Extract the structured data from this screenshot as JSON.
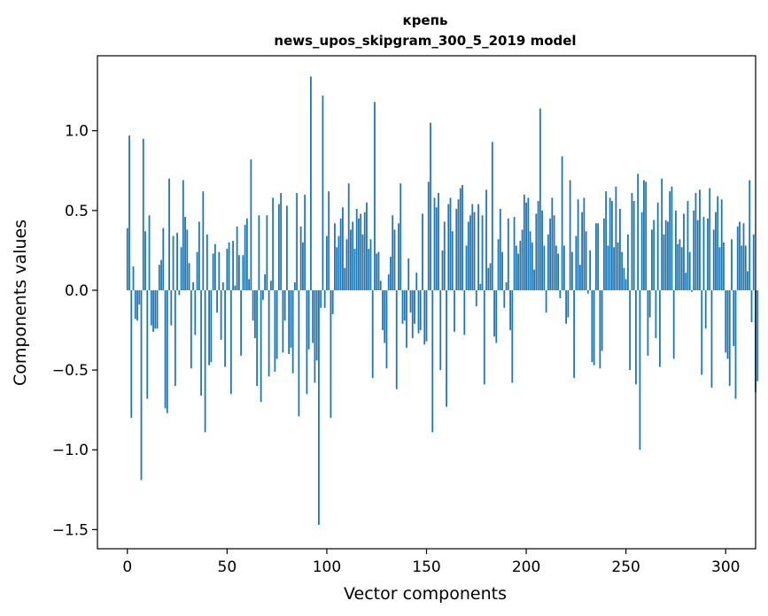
{
  "chart_data": {
    "type": "bar",
    "title_line1": "крепь",
    "title_line2": "news_upos_skipgram_300_5_2019 model",
    "xlabel": "Vector components",
    "ylabel": "Components values",
    "xlim": [
      -15,
      315
    ],
    "ylim": [
      -1.62,
      1.47
    ],
    "xticks": [
      0,
      50,
      100,
      150,
      200,
      250,
      300
    ],
    "xtick_labels": [
      "0",
      "50",
      "100",
      "150",
      "200",
      "250",
      "300"
    ],
    "yticks": [
      -1.5,
      -1.0,
      -0.5,
      0.0,
      0.5,
      1.0
    ],
    "ytick_labels": [
      "−1.5",
      "−1.0",
      "−0.5",
      "0.0",
      "0.5",
      "1.0"
    ],
    "bar_color": "#1f77b4",
    "values": [
      0.39,
      0.97,
      -0.8,
      0.15,
      -0.18,
      -0.19,
      -0.09,
      -1.19,
      0.95,
      0.37,
      -0.68,
      0.47,
      -0.22,
      -0.26,
      -0.24,
      -0.24,
      0.16,
      0.19,
      0.39,
      -0.74,
      -0.77,
      0.7,
      -0.22,
      0.34,
      -0.6,
      0.36,
      -0.03,
      0.27,
      0.69,
      0.46,
      0.38,
      0.17,
      -0.49,
      0.05,
      -0.28,
      0.24,
      0.43,
      -0.66,
      0.62,
      -0.89,
      0.35,
      -0.47,
      -0.45,
      0.23,
      0.29,
      -0.14,
      0.24,
      -0.31,
      0.05,
      -0.48,
      0.26,
      0.3,
      -0.65,
      0.31,
      0.03,
      0.4,
      0.22,
      -0.41,
      0.22,
      0.41,
      0.45,
      0.07,
      0.82,
      -0.19,
      -0.3,
      -0.6,
      0.47,
      -0.7,
      -0.06,
      0.1,
      0.47,
      -0.54,
      0.06,
      0.58,
      -0.51,
      -0.43,
      0.54,
      0.61,
      -0.39,
      -0.19,
      0.53,
      -0.4,
      -0.36,
      -0.52,
      0.05,
      0.61,
      -0.79,
      0.4,
      0.3,
      0.6,
      -0.65,
      -0.37,
      1.34,
      -0.33,
      -0.58,
      -0.44,
      -1.47,
      -0.11,
      1.22,
      -0.11,
      0.34,
      0.62,
      -0.8,
      -0.15,
      0.42,
      0.27,
      0.34,
      0.45,
      0.52,
      0.14,
      0.32,
      0.67,
      0.38,
      0.43,
      0.26,
      0.51,
      0.45,
      0.48,
      0.35,
      0.49,
      0.55,
      0.26,
      0.32,
      -0.55,
      1.18,
      0.23,
      0.24,
      0.06,
      -0.25,
      -0.33,
      -0.49,
      0.1,
      0.21,
      0.47,
      0.38,
      -0.62,
      0.42,
      0.67,
      -0.21,
      -0.19,
      -0.36,
      0.2,
      -0.14,
      -0.3,
      -0.21,
      0.11,
      -0.27,
      -0.25,
      0.48,
      -0.34,
      -0.32,
      0.68,
      1.05,
      -0.89,
      0.58,
      0.52,
      0.61,
      -0.5,
      0.25,
      0.43,
      -0.73,
      0.54,
      0.58,
      0.37,
      -0.26,
      0.51,
      0.57,
      0.64,
      0.66,
      -0.28,
      0.28,
      0.43,
      0.47,
      0.54,
      0.49,
      -0.1,
      0.54,
      0.04,
      0.47,
      -0.59,
      0.63,
      0.14,
      0.17,
      0.93,
      -0.29,
      -0.33,
      0.32,
      0.51,
      0.24,
      -0.11,
      0.05,
      0.45,
      -0.25,
      -0.58,
      0.46,
      0.28,
      0.23,
      0.31,
      0.38,
      0.6,
      0.55,
      0.58,
      0.37,
      0.3,
      0.13,
      0.48,
      0.56,
      1.14,
      0.5,
      0.28,
      -0.14,
      0.35,
      0.45,
      0.58,
      0.47,
      0.28,
      0.23,
      -0.05,
      0.84,
      0.28,
      -0.21,
      -0.17,
      0.69,
      0.24,
      -0.55,
      0.34,
      0.57,
      0.16,
      0.49,
      0.58,
      0.37,
      -0.02,
      0.25,
      -0.45,
      -0.47,
      0.42,
      0.42,
      -0.49,
      -0.38,
      0.45,
      0.62,
      0.28,
      0.58,
      0.56,
      0.27,
      0.65,
      0.3,
      0.51,
      0.24,
      0.14,
      0.07,
      0.35,
      -0.5,
      0.61,
      0.56,
      -0.59,
      0.73,
      -1.0,
      0.49,
      0.69,
      0.68,
      -0.41,
      -0.17,
      0.38,
      0.44,
      -0.3,
      0.55,
      -0.48,
      0.7,
      0.35,
      0.44,
      0.43,
      0.62,
      0.65,
      -0.43,
      0.5,
      0.29,
      0.32,
      0.27,
      0.48,
      0.11,
      0.56,
      0.24,
      -0.01,
      0.5,
      0.61,
      0.44,
      0.63,
      -0.53,
      0.46,
      -0.24,
      0.45,
      0.64,
      -0.61,
      0.38,
      0.49,
      0.59,
      0.27,
      0.57,
      0.3,
      -0.39,
      -0.43,
      -0.6,
      0.32,
      -0.35,
      -0.68,
      0.4,
      0.43,
      0.28,
      0.42,
      0.28,
      0.12,
      0.69,
      -0.2,
      0.35,
      -0.64,
      -0.57
    ]
  }
}
